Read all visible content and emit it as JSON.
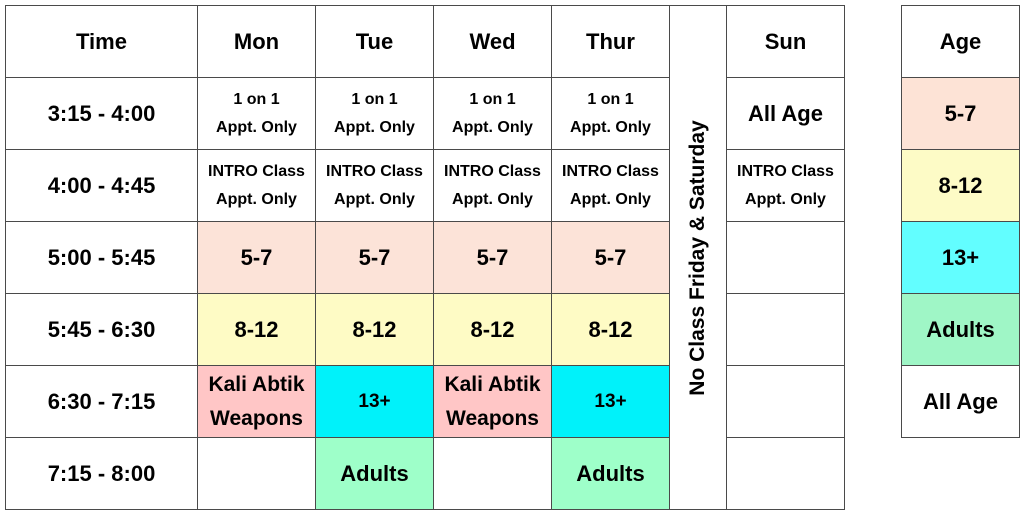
{
  "headers": {
    "time": "Time",
    "mon": "Mon",
    "tue": "Tue",
    "wed": "Wed",
    "thur": "Thur",
    "sun": "Sun"
  },
  "closed_note": "No Class Friday & Saturday",
  "rows": [
    {
      "time": "3:15 - 4:00",
      "mon": [
        "1 on 1",
        "Appt. Only"
      ],
      "tue": [
        "1 on 1",
        "Appt. Only"
      ],
      "wed": [
        "1 on 1",
        "Appt. Only"
      ],
      "thur": [
        "1 on 1",
        "Appt. Only"
      ],
      "sun": "All Age"
    },
    {
      "time": "4:00 - 4:45",
      "mon": [
        "INTRO Class",
        "Appt. Only"
      ],
      "tue": [
        "INTRO Class",
        "Appt. Only"
      ],
      "wed": [
        "INTRO Class",
        "Appt. Only"
      ],
      "thur": [
        "INTRO Class",
        "Appt. Only"
      ],
      "sun": [
        "INTRO Class",
        "Appt. Only"
      ]
    },
    {
      "time": "5:00 - 5:45",
      "mon": "5-7",
      "tue": "5-7",
      "wed": "5-7",
      "thur": "5-7",
      "sun": ""
    },
    {
      "time": "5:45 - 6:30",
      "mon": "8-12",
      "tue": "8-12",
      "wed": "8-12",
      "thur": "8-12",
      "sun": ""
    },
    {
      "time": "6:30 - 7:15",
      "mon": [
        "Kali Abtik",
        "Weapons"
      ],
      "tue": "13+",
      "wed": [
        "Kali Abtik",
        "Weapons"
      ],
      "thur": "13+",
      "sun": ""
    },
    {
      "time": "7:15 - 8:00",
      "mon": "",
      "tue": "Adults",
      "wed": "",
      "thur": "Adults",
      "sun": ""
    }
  ],
  "age_legend": {
    "header": "Age",
    "items": [
      "5-7",
      "8-12",
      "13+",
      "Adults",
      "All Age"
    ]
  },
  "colors": {
    "age_5_7": "#fce3d8",
    "age_8_12": "#fefbc5",
    "age_13_plus": "#00f2fa",
    "adults": "#9effc9",
    "kali_abtik": "#ffc6c6",
    "border": "#4a4a4a"
  }
}
